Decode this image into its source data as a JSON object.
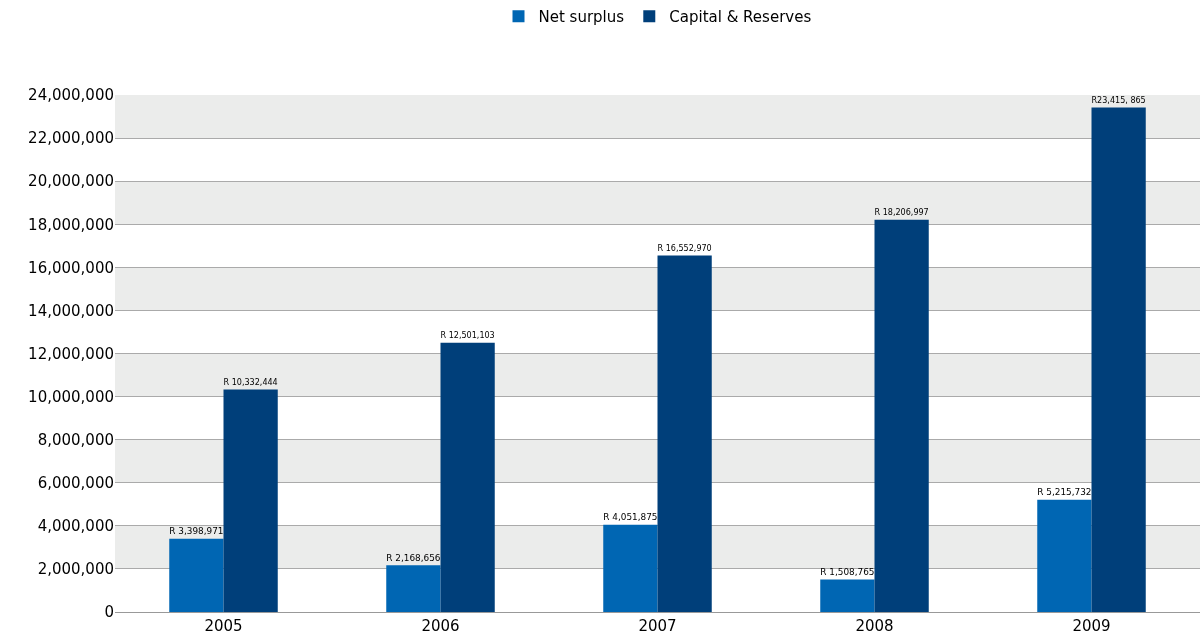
{
  "chart_data": {
    "type": "bar",
    "categories": [
      "2005",
      "2006",
      "2007",
      "2008",
      "2009"
    ],
    "series": [
      {
        "name": "Net surplus",
        "color": "#0066b3",
        "values": [
          3398971,
          2168656,
          4051875,
          1508765,
          5215732
        ],
        "value_labels": [
          "R 3,398,971",
          "R 2,168,656",
          "R 4,051,875",
          "R 1,508,765",
          "R 5,215,732"
        ]
      },
      {
        "name": "Capital & Reserves",
        "color": "#003f7a",
        "values": [
          10332444,
          12501103,
          16552970,
          18206997,
          23415865
        ],
        "value_labels": [
          "R 10,332,444",
          "R 12,501,103",
          "R 16,552,970",
          "R 18,206,997",
          "R23,415, 865"
        ]
      }
    ],
    "ylim": [
      0,
      24000000
    ],
    "yticks": [
      {
        "value": 0,
        "label": "0"
      },
      {
        "value": 2000000,
        "label": "2,000,000"
      },
      {
        "value": 4000000,
        "label": "4,000,000"
      },
      {
        "value": 6000000,
        "label": "6,000,000"
      },
      {
        "value": 8000000,
        "label": "8,000,000"
      },
      {
        "value": 10000000,
        "label": "10,000,000"
      },
      {
        "value": 12000000,
        "label": "12,000,000"
      },
      {
        "value": 14000000,
        "label": "14,000,000"
      },
      {
        "value": 16000000,
        "label": "16,000,000"
      },
      {
        "value": 18000000,
        "label": "18,000,000"
      },
      {
        "value": 20000000,
        "label": "20,000,000"
      },
      {
        "value": 22000000,
        "label": "22,000,000"
      },
      {
        "value": 24000000,
        "label": "24,000,000"
      }
    ],
    "grid": "y",
    "legend": "top"
  }
}
